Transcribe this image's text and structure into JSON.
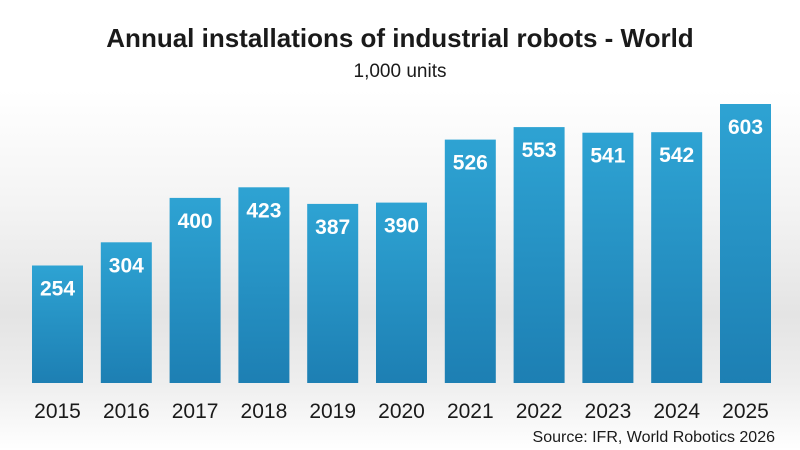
{
  "chart_data": {
    "type": "bar",
    "title": "Annual installations of industrial robots - World",
    "subtitle": "1,000 units",
    "categories": [
      "2015",
      "2016",
      "2017",
      "2018",
      "2019",
      "2020",
      "2021",
      "2022",
      "2023",
      "2024",
      "2025"
    ],
    "values": [
      254,
      304,
      400,
      423,
      387,
      390,
      526,
      553,
      541,
      542,
      603
    ],
    "data_labels": [
      "254",
      "304",
      "400",
      "423",
      "387",
      "390",
      "526",
      "553",
      "541",
      "542",
      "603"
    ],
    "xlabel": "",
    "ylabel": "",
    "ylim": [
      0,
      603
    ],
    "grid": false,
    "legend": "none",
    "source": "Source: IFR, World Robotics 2026",
    "colors": {
      "bar_top": "#2ea3d3",
      "bar_bottom": "#1d7fb3",
      "text": "#1a1a1a",
      "label": "#ffffff"
    }
  }
}
